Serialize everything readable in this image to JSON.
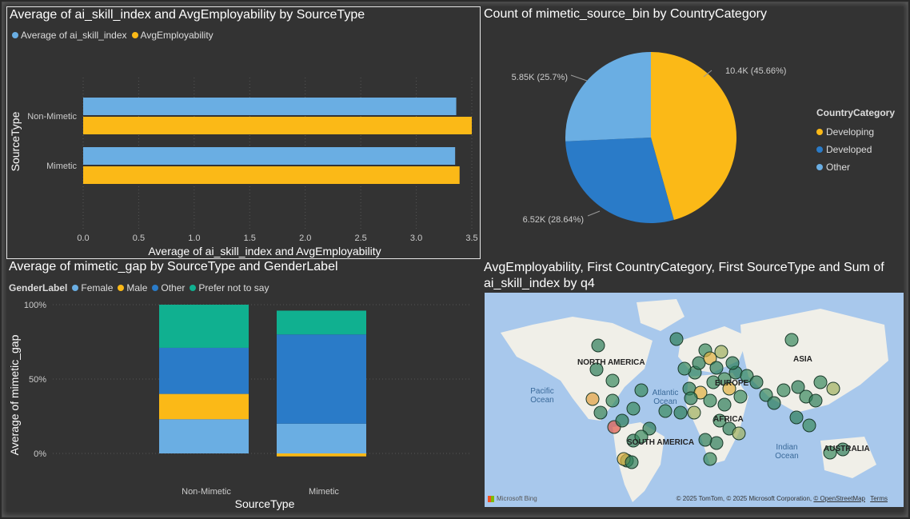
{
  "colors": {
    "light_blue": "#6aaee3",
    "yellow": "#fbb917",
    "dark_blue": "#2a7bc8",
    "teal": "#10b090",
    "map_water": "#a8c8ec",
    "map_land": "#f0efe8"
  },
  "panel1": {
    "title": "Average of ai_skill_index and AvgEmployability by SourceType",
    "legend": [
      {
        "label": "Average of ai_skill_index",
        "color": "#6aaee3"
      },
      {
        "label": "AvgEmployability",
        "color": "#fbb917"
      }
    ],
    "xlabel": "Average of ai_skill_index and AvgEmployability",
    "ylabel": "SourceType",
    "chart_data": {
      "type": "bar",
      "orientation": "horizontal",
      "categories": [
        "Non-Mimetic",
        "Mimetic"
      ],
      "series": [
        {
          "name": "Average of ai_skill_index",
          "values": [
            3.36,
            3.35
          ]
        },
        {
          "name": "AvgEmployability",
          "values": [
            3.5,
            3.39
          ]
        }
      ],
      "xlim": [
        0,
        3.5
      ],
      "xticks": [
        "0.0",
        "0.5",
        "1.0",
        "1.5",
        "2.0",
        "2.5",
        "3.0",
        "3.5"
      ]
    }
  },
  "panel2": {
    "title": "Count of mimetic_source_bin by CountryCategory",
    "legend_title": "CountryCategory",
    "chart_data": {
      "type": "pie",
      "slices": [
        {
          "name": "Developing",
          "value": 10400,
          "label": "10.4K (45.66%)",
          "pct": 45.66,
          "color": "#fbb917"
        },
        {
          "name": "Developed",
          "value": 6520,
          "label": "6.52K (28.64%)",
          "pct": 28.64,
          "color": "#2a7bc8"
        },
        {
          "name": "Other",
          "value": 5850,
          "label": "5.85K (25.7%)",
          "pct": 25.7,
          "color": "#6aaee3"
        }
      ]
    }
  },
  "panel3": {
    "title": "Average of mimetic_gap by SourceType and GenderLabel",
    "legend_title": "GenderLabel",
    "legend": [
      {
        "label": "Female",
        "color": "#6aaee3"
      },
      {
        "label": "Male",
        "color": "#fbb917"
      },
      {
        "label": "Other",
        "color": "#2a7bc8"
      },
      {
        "label": "Prefer not to say",
        "color": "#10b090"
      }
    ],
    "xlabel": "SourceType",
    "ylabel": "Average of mimetic_gap",
    "chart_data": {
      "type": "bar",
      "stacked": "percent",
      "categories": [
        "Non-Mimetic",
        "Mimetic"
      ],
      "series": [
        {
          "name": "Female",
          "values": [
            23,
            20
          ]
        },
        {
          "name": "Male",
          "values": [
            17,
            -2
          ]
        },
        {
          "name": "Other",
          "values": [
            31,
            60
          ]
        },
        {
          "name": "Prefer not to say",
          "values": [
            29,
            16
          ]
        }
      ],
      "yticks": [
        "100%",
        "50%",
        "0%"
      ],
      "ylim": [
        0,
        100
      ]
    }
  },
  "panel4": {
    "title": "AvgEmployability, First CountryCategory, First SourceType and Sum of ai_skill_index by q4",
    "map_labels": {
      "north_america": "NORTH AMERICA",
      "south_america": "SOUTH AMERICA",
      "europe": "EUROPE",
      "asia": "ASIA",
      "africa": "AFRICA",
      "australia": "AUSTRALIA",
      "pacific": "Pacific Ocean",
      "atlantic": "Atlantic Ocean",
      "indian": "Indian Ocean"
    },
    "attribution": "© 2025 TomTom, © 2025 Microsoft Corporation,",
    "osm_link": "© OpenStreetMap",
    "terms_link": "Terms",
    "bing_logo": "Microsoft Bing"
  }
}
